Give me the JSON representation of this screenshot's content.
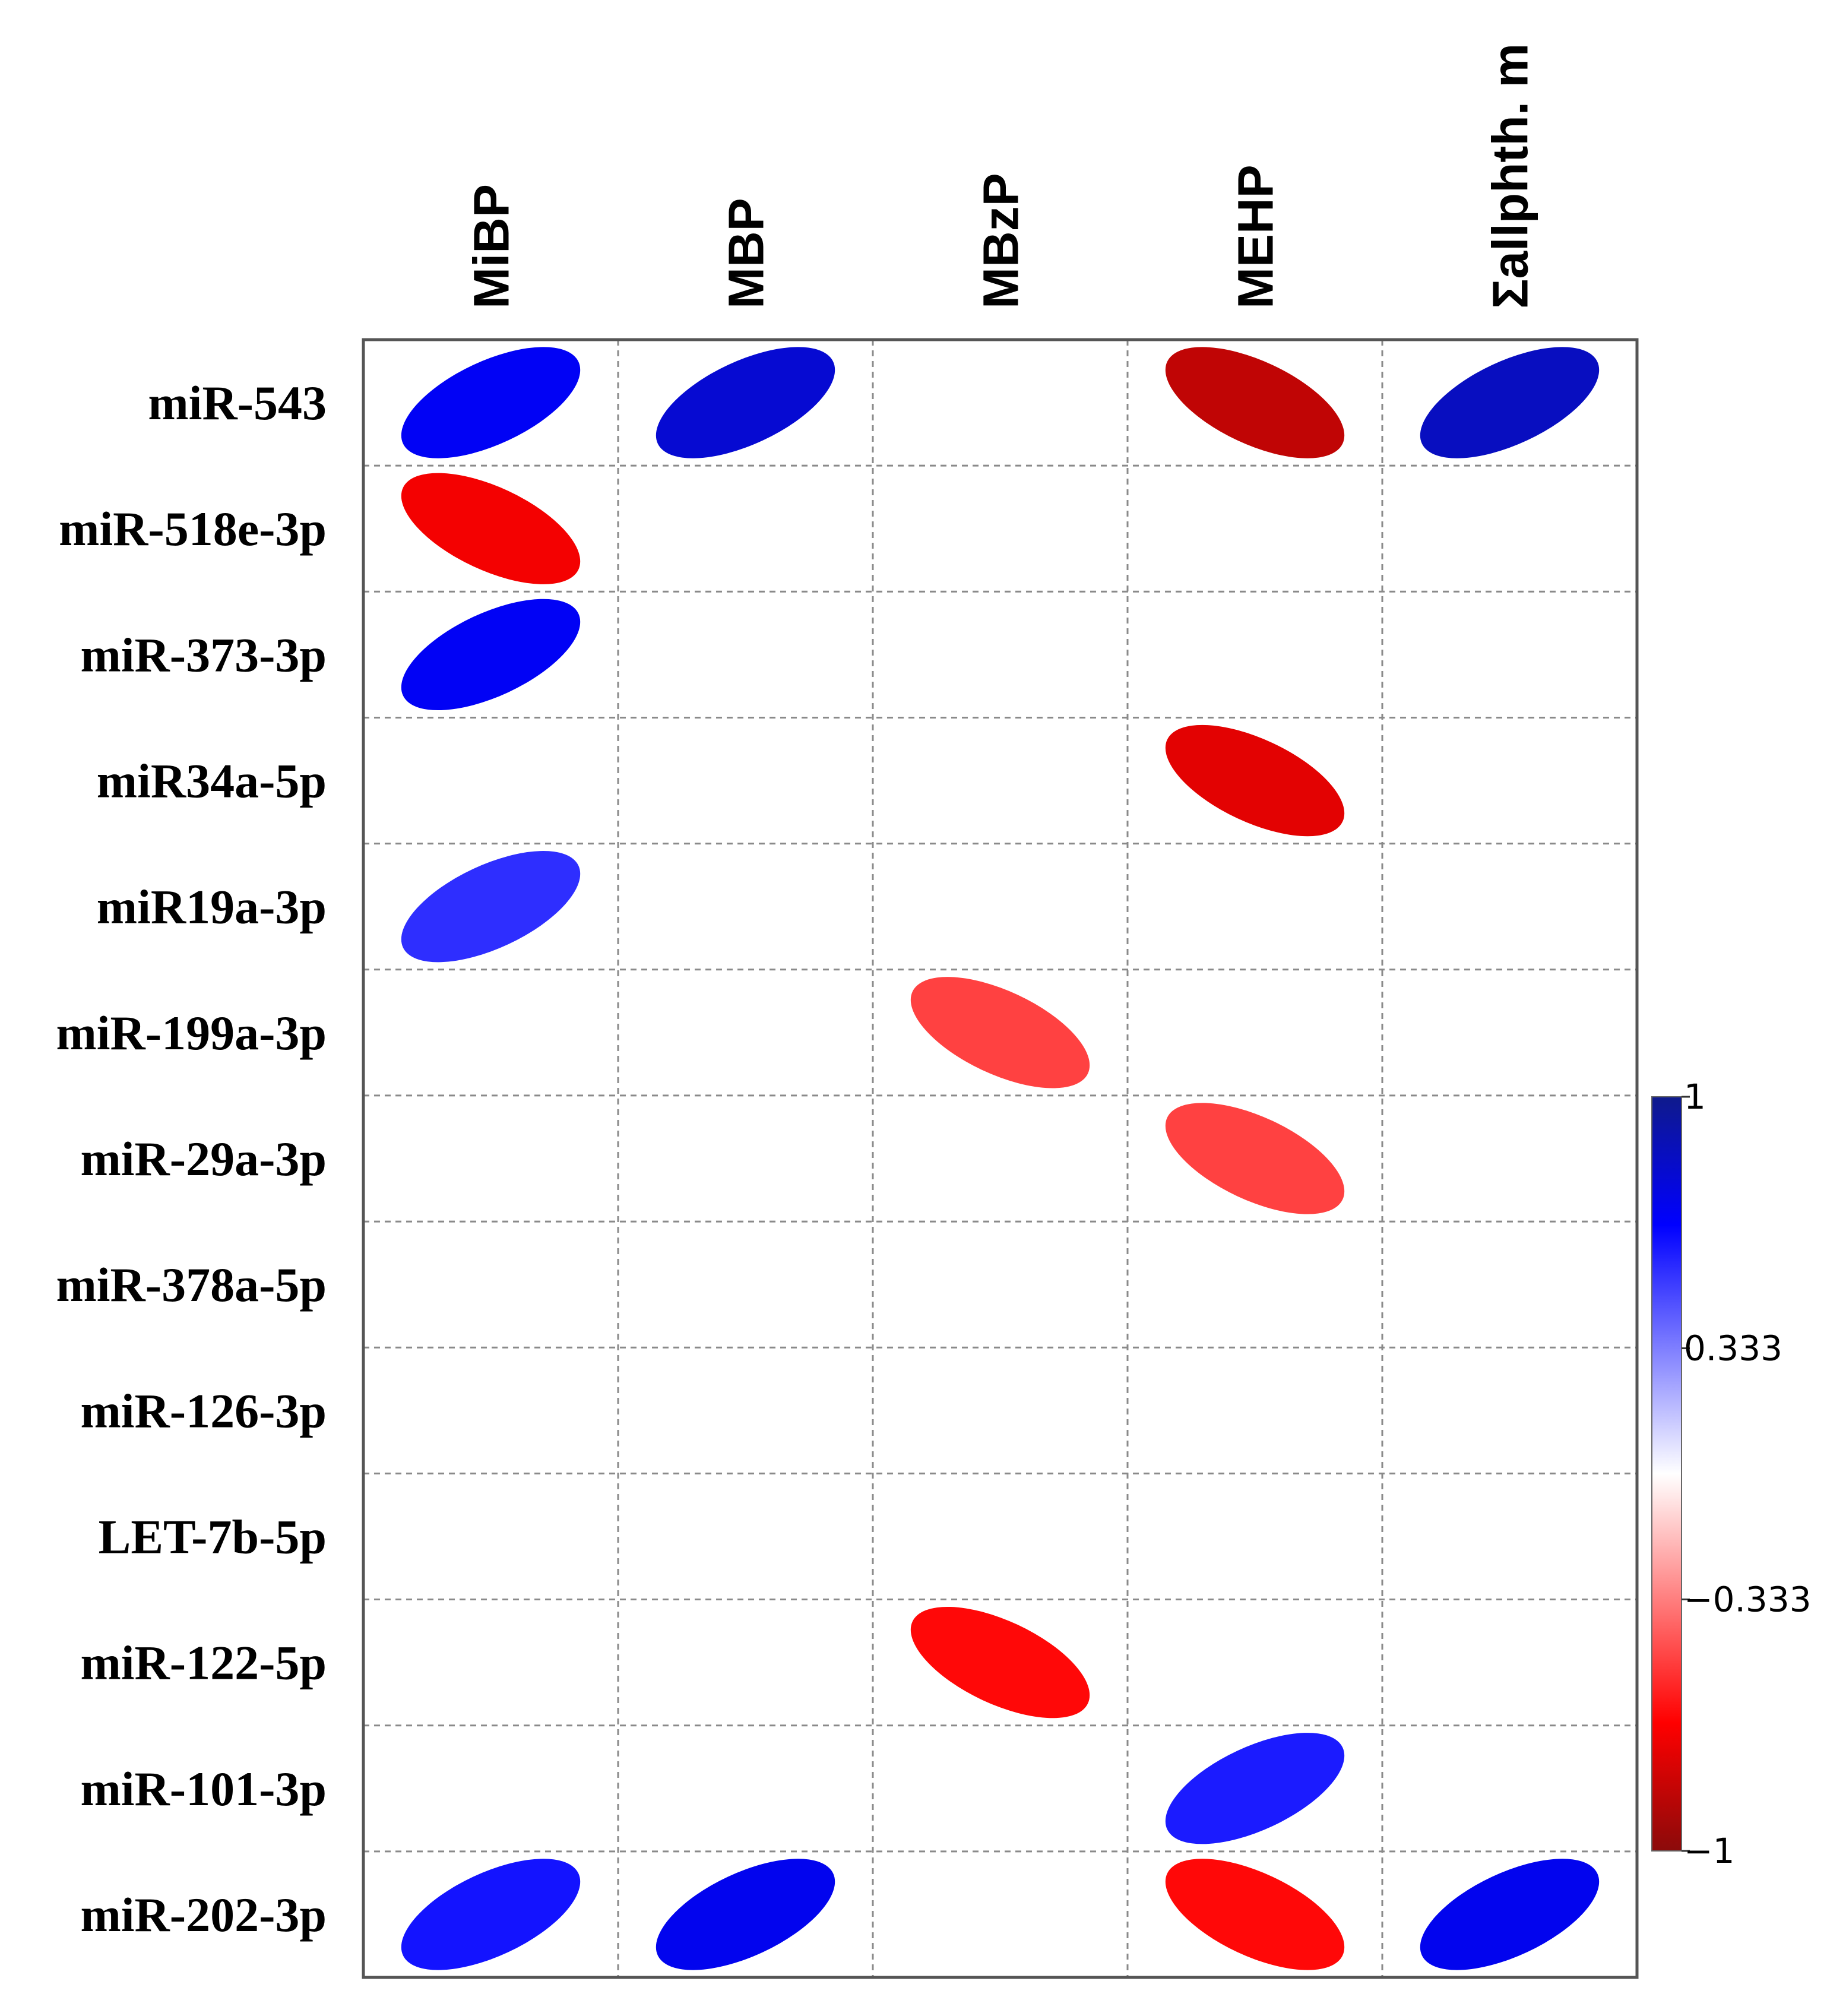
{
  "chart_data": {
    "type": "correlation-ellipse-matrix",
    "title": "",
    "columns": [
      "MiBP",
      "MBP",
      "MBzP",
      "MEHP",
      "Σallphth. m"
    ],
    "rows": [
      "miR-543",
      "miR-518e-3p",
      "miR-373-3p",
      "miR34a-5p",
      "miR19a-3p",
      "miR-199a-3p",
      "miR-29a-3p",
      "miR-378a-5p",
      "miR-126-3p",
      "LET-7b-5p",
      "miR-122-5p",
      "miR-101-3p",
      "miR-202-3p"
    ],
    "values": [
      [
        0.7,
        0.8,
        null,
        -0.85,
        0.85
      ],
      [
        -0.7,
        null,
        null,
        null,
        null
      ],
      [
        0.7,
        null,
        null,
        null,
        null
      ],
      [
        null,
        null,
        null,
        -0.75,
        null
      ],
      [
        0.55,
        null,
        null,
        null,
        null
      ],
      [
        null,
        null,
        -0.5,
        null,
        null
      ],
      [
        null,
        null,
        null,
        -0.5,
        null
      ],
      [
        null,
        null,
        null,
        null,
        null
      ],
      [
        null,
        null,
        null,
        null,
        null
      ],
      [
        null,
        null,
        null,
        null,
        null
      ],
      [
        null,
        null,
        -0.65,
        null,
        null
      ],
      [
        null,
        null,
        null,
        0.6,
        null
      ],
      [
        0.62,
        0.72,
        null,
        -0.65,
        0.72
      ]
    ],
    "colorbar": {
      "range": [
        -1,
        1
      ],
      "ticks": [
        1,
        0.333,
        -0.333,
        -1
      ],
      "tick_labels": [
        "1",
        "0.333",
        "−0.333",
        "−1"
      ],
      "colors": {
        "pos_max": "#0f1a8c",
        "pos_mid": "#0000ff",
        "zero": "#ffffff",
        "neg_mid": "#ff0000",
        "neg_max": "#8b0a0a"
      }
    }
  }
}
